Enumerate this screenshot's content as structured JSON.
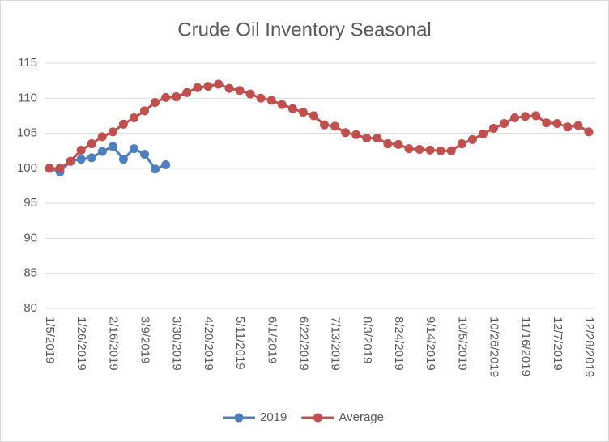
{
  "chart_data": {
    "type": "line",
    "title": "Crude Oil Inventory Seasonal",
    "categories": [
      "1/5/2019",
      null,
      null,
      "1/26/2019",
      null,
      null,
      "2/16/2019",
      null,
      null,
      "3/9/2019",
      null,
      null,
      "3/30/2019",
      null,
      null,
      "4/20/2019",
      null,
      null,
      "5/11/2019",
      null,
      null,
      "6/1/2019",
      null,
      null,
      "6/22/2019",
      null,
      null,
      "7/13/2019",
      null,
      null,
      "8/3/2019",
      null,
      null,
      "8/24/2019",
      null,
      null,
      "9/14/2019",
      null,
      null,
      "10/5/2019",
      null,
      null,
      "10/26/2019",
      null,
      null,
      "11/16/2019",
      null,
      null,
      "12/7/2019",
      null,
      null,
      "12/28/2019"
    ],
    "series": [
      {
        "name": "2019",
        "color": "#4e7fbf",
        "values": [
          100,
          99.5,
          101,
          101.3,
          101.5,
          102.4,
          103.1,
          101.3,
          102.8,
          102,
          99.9,
          100.5,
          null,
          null,
          null,
          null,
          null,
          null,
          null,
          null,
          null,
          null,
          null,
          null,
          null,
          null,
          null,
          null,
          null,
          null,
          null,
          null,
          null,
          null,
          null,
          null,
          null,
          null,
          null,
          null,
          null,
          null,
          null,
          null,
          null,
          null,
          null,
          null,
          null,
          null,
          null,
          null
        ]
      },
      {
        "name": "Average",
        "color": "#c0504d",
        "values": [
          100,
          100,
          101,
          102.6,
          103.5,
          104.5,
          105.2,
          106.3,
          107.2,
          108.2,
          109.4,
          110.1,
          110.2,
          110.8,
          111.5,
          111.7,
          112,
          111.4,
          111.1,
          110.6,
          110,
          109.7,
          109.1,
          108.5,
          108,
          107.5,
          106.2,
          106,
          105.1,
          104.8,
          104.3,
          104.3,
          103.5,
          103.4,
          102.8,
          102.7,
          102.6,
          102.5,
          102.5,
          103.5,
          104.1,
          104.9,
          105.7,
          106.4,
          107.2,
          107.4,
          107.5,
          106.5,
          106.4,
          105.9,
          106.1,
          105.2
        ]
      }
    ],
    "ylim": [
      80,
      115
    ],
    "yticks": [
      80,
      85,
      90,
      95,
      100,
      105,
      110,
      115
    ],
    "grid": true,
    "legend": "bottom"
  }
}
